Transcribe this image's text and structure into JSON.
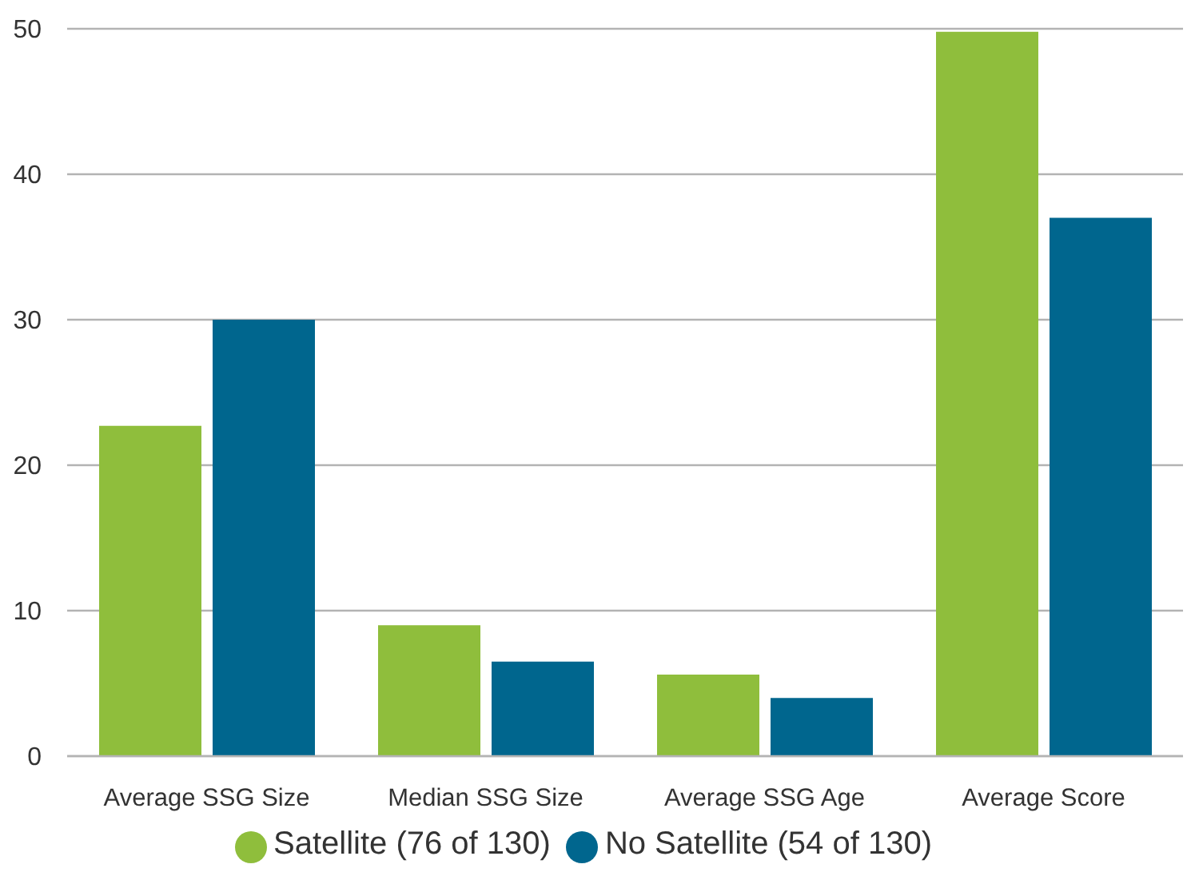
{
  "chart_data": {
    "type": "bar",
    "categories": [
      "Average SSG Size",
      "Median SSG Size",
      "Average SSG Age",
      "Average Score"
    ],
    "series": [
      {
        "name": "Satellite (76 of 130)",
        "color": "#8fbe3c",
        "values": [
          22.7,
          9.0,
          5.6,
          49.8
        ]
      },
      {
        "name": "No Satellite (54 of 130)",
        "color": "#00668e",
        "values": [
          30.0,
          6.5,
          4.0,
          37.0
        ]
      }
    ],
    "ylim": [
      0,
      50
    ],
    "yticks": [
      0,
      10,
      20,
      30,
      40,
      50
    ],
    "grid": "y",
    "legend": "bottom"
  }
}
